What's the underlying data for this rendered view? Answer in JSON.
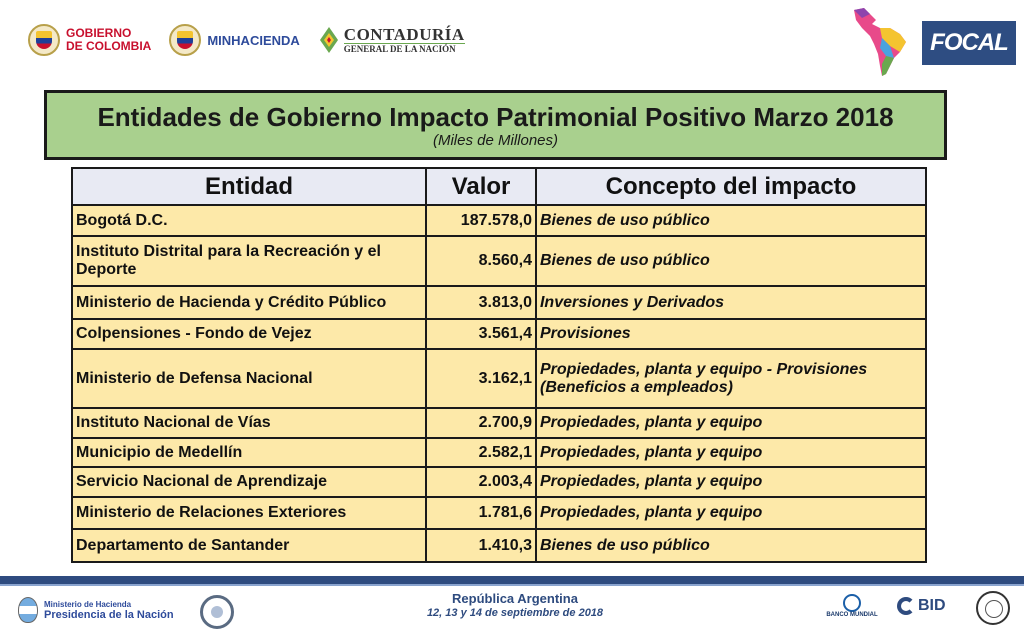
{
  "header": {
    "logos": {
      "gobierno_line1": "GOBIERNO",
      "gobierno_line2": "DE COLOMBIA",
      "minhacienda": "MINHACIENDA",
      "contaduria_line1": "CONTADURÍA",
      "contaduria_line2": "GENERAL DE LA NACIÓN",
      "focal": "FOCAL"
    }
  },
  "title": {
    "main": "Entidades de Gobierno Impacto Patrimonial Positivo Marzo 2018",
    "subtitle": "(Miles de Millones)"
  },
  "table": {
    "headers": [
      "Entidad",
      "Valor",
      "Concepto del impacto"
    ],
    "rows": [
      {
        "entidad": "Bogotá D.C.",
        "valor": "187.578,0",
        "concepto": "Bienes de uso público"
      },
      {
        "entidad": "Instituto Distrital para la Recreación y el Deporte",
        "valor": "8.560,4",
        "concepto": "Bienes de uso público"
      },
      {
        "entidad": "Ministerio de Hacienda y Crédito Público",
        "valor": "3.813,0",
        "concepto": "Inversiones y Derivados"
      },
      {
        "entidad": "Colpensiones - Fondo de Vejez",
        "valor": "3.561,4",
        "concepto": "Provisiones"
      },
      {
        "entidad": "Ministerio de Defensa Nacional",
        "valor": "3.162,1",
        "concepto": "Propiedades, planta y equipo - Provisiones (Beneficios a empleados)"
      },
      {
        "entidad": "Instituto Nacional de Vías",
        "valor": "2.700,9",
        "concepto": "Propiedades, planta y equipo"
      },
      {
        "entidad": "Municipio de Medellín",
        "valor": "2.582,1",
        "concepto": "Propiedades, planta y equipo"
      },
      {
        "entidad": "Servicio Nacional de Aprendizaje",
        "valor": "2.003,4",
        "concepto": "Propiedades, planta y equipo"
      },
      {
        "entidad": "Ministerio de Relaciones Exteriores",
        "valor": "1.781,6",
        "concepto": "Propiedades, planta y equipo"
      },
      {
        "entidad": "Departamento de Santander",
        "valor": "1.410,3",
        "concepto": "Bienes de uso público"
      }
    ]
  },
  "footer": {
    "ministerio_line1": "Ministerio de Hacienda",
    "ministerio_line2": "Presidencia de la Nación",
    "event_place": "República Argentina",
    "event_dates": "12, 13 y 14 de septiembre de 2018",
    "banco_mundial": "BANCO MUNDIAL",
    "bid": "BID"
  },
  "colors": {
    "title_bg": "#a9d08e",
    "header_bg": "#e8eaf3",
    "cell_bg": "#fde9a9",
    "footer_bar": "#2e4b7f",
    "focal_bg": "#2e4d82"
  }
}
